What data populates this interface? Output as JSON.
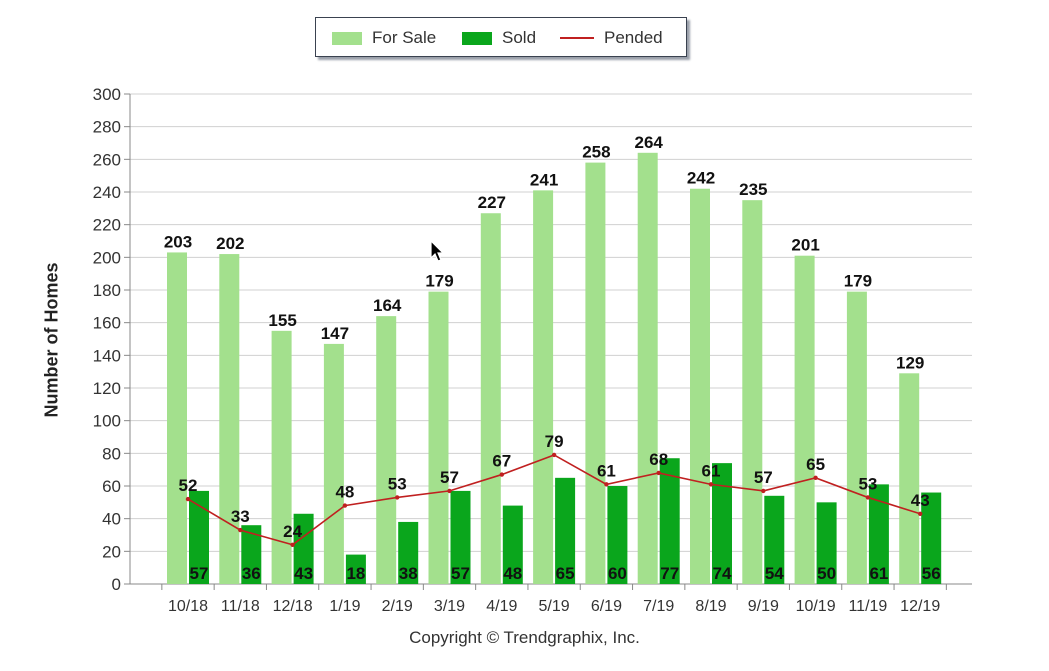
{
  "legend": {
    "items": [
      {
        "label": "For Sale",
        "kind": "bar",
        "color": "#a3e08d"
      },
      {
        "label": "Sold",
        "kind": "bar",
        "color": "#0aa61c"
      },
      {
        "label": "Pended",
        "kind": "line",
        "color": "#c02020"
      }
    ]
  },
  "copyright": "Copyright © Trendgraphix, Inc.",
  "chart_data": {
    "type": "bar",
    "categories": [
      "10/18",
      "11/18",
      "12/18",
      "1/19",
      "2/19",
      "3/19",
      "4/19",
      "5/19",
      "6/19",
      "7/19",
      "8/19",
      "9/19",
      "10/19",
      "11/19",
      "12/19"
    ],
    "series": [
      {
        "name": "For Sale",
        "type": "bar",
        "color": "#a3e08d",
        "values": [
          203,
          202,
          155,
          147,
          164,
          179,
          227,
          241,
          258,
          264,
          242,
          235,
          201,
          179,
          129
        ]
      },
      {
        "name": "Sold",
        "type": "bar",
        "color": "#0aa61c",
        "values": [
          57,
          36,
          43,
          18,
          38,
          57,
          48,
          65,
          60,
          77,
          74,
          54,
          50,
          61,
          56
        ]
      },
      {
        "name": "Pended",
        "type": "line",
        "color": "#c02020",
        "values": [
          52,
          33,
          24,
          48,
          53,
          57,
          67,
          79,
          61,
          68,
          61,
          57,
          65,
          53,
          43
        ]
      }
    ],
    "ylabel": "Number of Homes",
    "xlabel": "",
    "ylim": [
      0,
      300
    ],
    "yticks": [
      0,
      20,
      40,
      60,
      80,
      100,
      120,
      140,
      160,
      180,
      200,
      220,
      240,
      260,
      280,
      300
    ],
    "grid": true,
    "legend_position": "top-center"
  }
}
